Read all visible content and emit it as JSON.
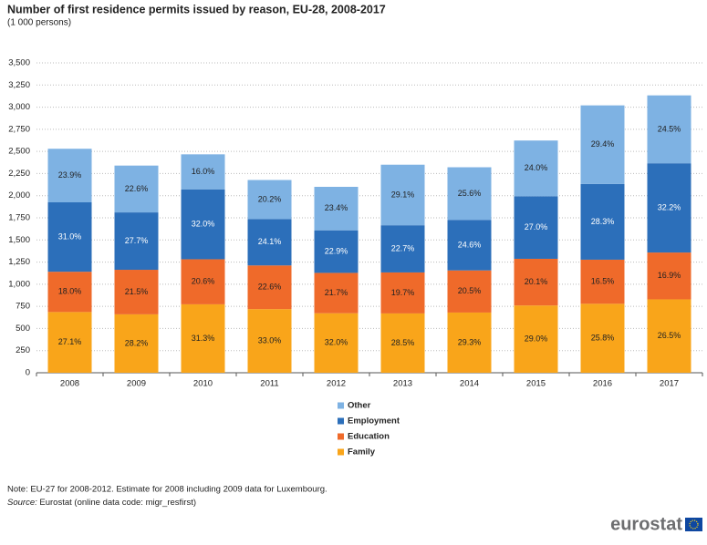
{
  "chart_data": {
    "type": "stacked-bar",
    "title": "Number of first residence permits issued by reason, EU-28, 2008-2017",
    "subtitle": "(1 000 persons)",
    "categories": [
      "2008",
      "2009",
      "2010",
      "2011",
      "2012",
      "2013",
      "2014",
      "2015",
      "2016",
      "2017"
    ],
    "series": [
      {
        "name": "Family",
        "color": "#f9a51a",
        "values": [
          686,
          660,
          773,
          719,
          672,
          670,
          680,
          760,
          779,
          829
        ],
        "labels": [
          "27.1%",
          "28.2%",
          "31.3%",
          "33.0%",
          "32.0%",
          "28.5%",
          "29.3%",
          "29.0%",
          "25.8%",
          "26.5%"
        ]
      },
      {
        "name": "Education",
        "color": "#ef6a2a",
        "values": [
          455,
          503,
          509,
          493,
          456,
          463,
          476,
          527,
          498,
          529
        ],
        "labels": [
          "18.0%",
          "21.5%",
          "20.6%",
          "22.6%",
          "21.7%",
          "19.7%",
          "20.5%",
          "20.1%",
          "16.5%",
          "16.9%"
        ]
      },
      {
        "name": "Employment",
        "color": "#2c6fba",
        "values": [
          784,
          648,
          790,
          525,
          481,
          533,
          571,
          707,
          855,
          1008
        ],
        "labels": [
          "31.0%",
          "27.7%",
          "32.0%",
          "24.1%",
          "22.9%",
          "22.7%",
          "24.6%",
          "27.0%",
          "28.3%",
          "32.2%"
        ]
      },
      {
        "name": "Other",
        "color": "#7eb2e3",
        "values": [
          605,
          529,
          395,
          440,
          491,
          684,
          594,
          629,
          888,
          767
        ],
        "labels": [
          "23.9%",
          "22.6%",
          "16.0%",
          "20.2%",
          "23.4%",
          "29.1%",
          "25.6%",
          "24.0%",
          "29.4%",
          "24.5%"
        ]
      }
    ],
    "ylim": [
      0,
      3500
    ],
    "yticks": [
      0,
      250,
      500,
      750,
      {
        "value": 1000,
        "label": "1,000"
      },
      {
        "value": 1250,
        "label": "1,250"
      },
      {
        "value": 1500,
        "label": "1,500"
      },
      {
        "value": 1750,
        "label": "1,750"
      },
      {
        "value": 2000,
        "label": "2,000"
      },
      {
        "value": 2250,
        "label": "2,250"
      },
      {
        "value": 2500,
        "label": "2,500"
      },
      {
        "value": 2750,
        "label": "2,750"
      },
      {
        "value": 3000,
        "label": "3,000"
      },
      {
        "value": 3250,
        "label": "3,250"
      },
      {
        "value": 3500,
        "label": "3,500"
      }
    ],
    "grid": true,
    "note": "Note: EU-27 for 2008-2012. Estimate for 2008 including 2009 data for Luxembourg.",
    "source_label": "Source:",
    "source_text": "Eurostat (online data code: migr_resfirst)",
    "logo": "eurostat"
  }
}
